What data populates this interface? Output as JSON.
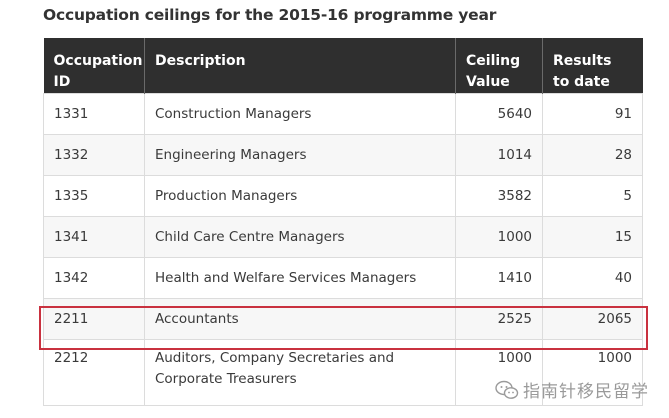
{
  "caption": "Occupation ceilings for the 2015-16 programme year",
  "table": {
    "headers": [
      "Occupation ID",
      "Description",
      "Ceiling Value",
      "Results to date"
    ],
    "rows": [
      [
        "1331",
        "Construction Managers",
        "5640",
        "91"
      ],
      [
        "1332",
        "Engineering Managers",
        "1014",
        "28"
      ],
      [
        "1335",
        "Production Managers",
        "3582",
        "5"
      ],
      [
        "1341",
        "Child Care Centre Managers",
        "1000",
        "15"
      ],
      [
        "1342",
        "Health and Welfare Services Managers",
        "1410",
        "40"
      ],
      [
        "2211",
        "Accountants",
        "2525",
        "2065"
      ],
      [
        "2212",
        "Auditors, Company Secretaries and Corporate Treasurers",
        "1000",
        "1000"
      ]
    ],
    "highlighted_row": "2211"
  },
  "watermark": {
    "text": "指南针移民留学",
    "icon": "wechat-icon"
  },
  "colors": {
    "header_bg": "#2f2f2f",
    "highlight_border": "#c9313f"
  }
}
